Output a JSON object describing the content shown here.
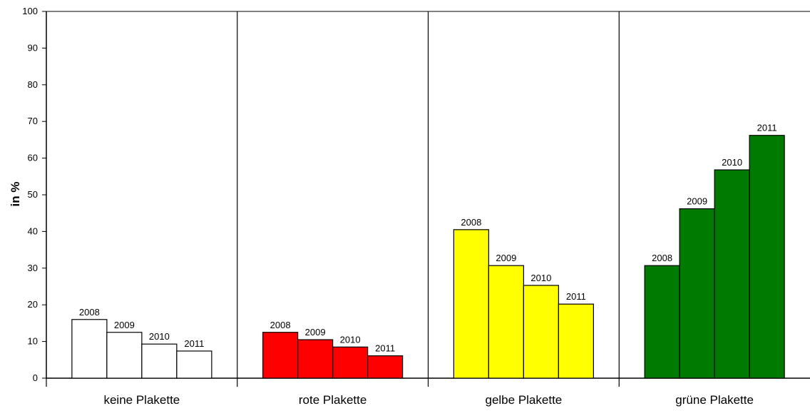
{
  "chart_data": {
    "type": "bar",
    "title": "",
    "xlabel": "",
    "ylabel": "in %",
    "ylim": [
      0,
      100
    ],
    "yticks": [
      0,
      10,
      20,
      30,
      40,
      50,
      60,
      70,
      80,
      90,
      100
    ],
    "grid": false,
    "legend": "none",
    "categories": [
      "keine Plakette",
      "rote Plakette",
      "gelbe Plakette",
      "grüne Plakette"
    ],
    "category_colors": [
      "#ffffff",
      "#ff0000",
      "#ffff00",
      "#007a00"
    ],
    "bar_labels": [
      "2008",
      "2009",
      "2010",
      "2011"
    ],
    "values": [
      [
        16,
        12.5,
        9.3,
        7.4
      ],
      [
        12.5,
        10.5,
        8.5,
        6.1
      ],
      [
        40.5,
        30.7,
        25.3,
        20.2
      ],
      [
        30.7,
        46.2,
        56.8,
        66.2
      ]
    ]
  }
}
